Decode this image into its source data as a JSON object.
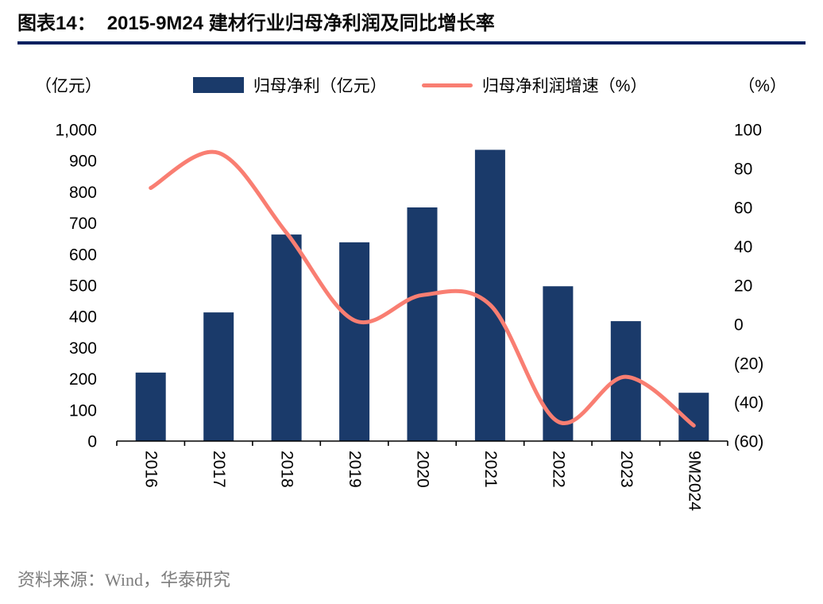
{
  "header": {
    "title_prefix": "图表14：",
    "title_text": "2015-9M24 建材行业归母净利润及同比增长率"
  },
  "chart_data": {
    "type": "bar",
    "subtype": "combo-bar-line-dual-axis",
    "categories": [
      "2016",
      "2017",
      "2018",
      "2019",
      "2020",
      "2021",
      "2022",
      "2023",
      "9M2024"
    ],
    "bar_series": {
      "name": "归母净利（亿元）",
      "axis": "left",
      "color": "#1a3a6a",
      "values": [
        220,
        413,
        663,
        638,
        750,
        935,
        497,
        385,
        155
      ]
    },
    "line_series": {
      "name": "归母净利润增速（%）",
      "axis": "right",
      "color": "#f97e72",
      "values": [
        70,
        88,
        47,
        2,
        15,
        10,
        -50,
        -27,
        -52
      ]
    },
    "left_axis": {
      "unit": "（亿元）",
      "min": 0,
      "max": 1000,
      "step": 100
    },
    "right_axis": {
      "unit": "（%）",
      "min": -60,
      "max": 100,
      "step": 20,
      "negative_format": "parentheses"
    },
    "grid": false,
    "legend_position": "top"
  },
  "footer": {
    "source": "资料来源：Wind，华泰研究"
  }
}
